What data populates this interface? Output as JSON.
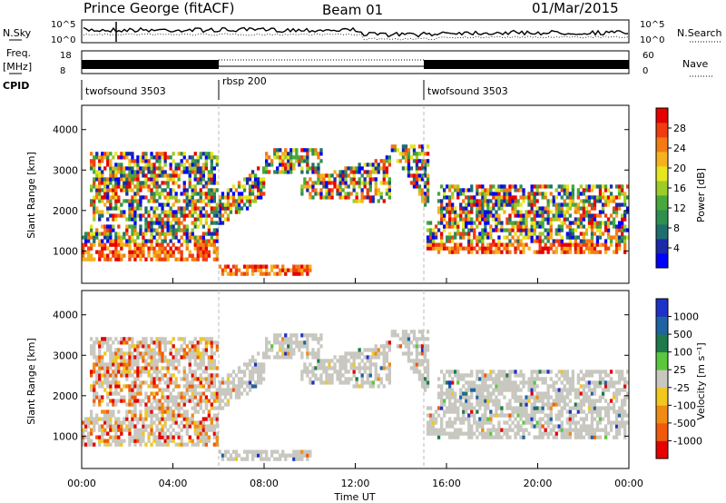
{
  "header": {
    "station": "Prince George (fitACF)",
    "beam": "Beam 01",
    "date": "01/Mar/2015"
  },
  "strips": {
    "nsky_label": "N.Sky",
    "nsky_ticks": [
      "10^5",
      "10^0"
    ],
    "nsearch_label": "N.Search",
    "nsearch_ticks": [
      "10^5",
      "10^0"
    ],
    "freq_label_1": "Freq.",
    "freq_label_2": "[MHz]",
    "freq_ticks": [
      "18",
      "8"
    ],
    "nave_label": "Nave",
    "nave_ticks": [
      "60",
      "0"
    ],
    "cpid_label": "CPID",
    "cpid_segments": [
      {
        "label": "twofsound 3503",
        "start_h": 0,
        "end_h": 6
      },
      {
        "label": "rbsp 200",
        "start_h": 6,
        "end_h": 15
      },
      {
        "label": "twofsound 3503",
        "start_h": 15,
        "end_h": 24
      }
    ]
  },
  "chart_data": [
    {
      "type": "heatmap",
      "name": "power-panel",
      "ylabel": "Slant Range [km]",
      "xlim": [
        0,
        24
      ],
      "ylim": [
        200,
        4600
      ],
      "yticks": [
        1000,
        2000,
        3000,
        4000
      ],
      "colorbar_label": "Power [dB]",
      "colorbar_ticks": [
        "4",
        "8",
        "12",
        "16",
        "20",
        "24",
        "28"
      ],
      "colorbar_colors": [
        "#0000ff",
        "#1a2aa8",
        "#1e6e6e",
        "#2f8f4f",
        "#49a83a",
        "#9ccc28",
        "#e6e61e",
        "#f5b21e",
        "#f57a14",
        "#ef3d10",
        "#e60000"
      ]
    },
    {
      "type": "heatmap",
      "name": "velocity-panel",
      "xlabel": "Time UT",
      "ylabel": "Slant Range [km]",
      "xlim": [
        0,
        24
      ],
      "ylim": [
        200,
        4600
      ],
      "yticks": [
        1000,
        2000,
        3000,
        4000
      ],
      "xticks": [
        "00:00",
        "04:00",
        "08:00",
        "12:00",
        "16:00",
        "20:00",
        "00:00"
      ],
      "colorbar_label": "Velocity [m s⁻¹]",
      "colorbar_ticks": [
        "1000",
        "500",
        "100",
        "25",
        "-25",
        "-100",
        "-500",
        "-1000"
      ],
      "colorbar_colors": [
        "#1e32c8",
        "#1e64a0",
        "#1e7a4a",
        "#5ac83c",
        "#c8c8c0",
        "#f0c81e",
        "#f08c14",
        "#f05a0a",
        "#e60000"
      ]
    }
  ]
}
